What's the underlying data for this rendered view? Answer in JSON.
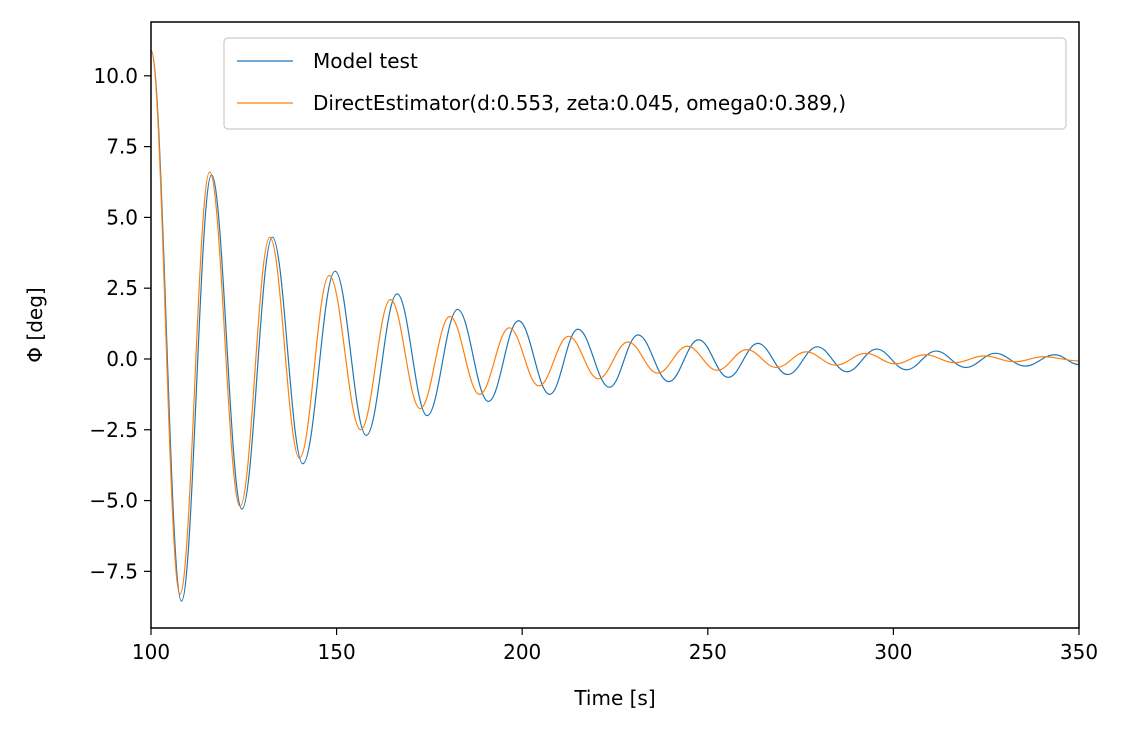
{
  "chart_data": {
    "type": "line",
    "title": "",
    "xlabel": "Time [s]",
    "ylabel": "Φ [deg]",
    "xlim": [
      100,
      350
    ],
    "ylim": [
      -9.5,
      11.9
    ],
    "xticks": [
      100,
      150,
      200,
      250,
      300,
      350
    ],
    "xtick_labels": [
      "100",
      "150",
      "200",
      "250",
      "300",
      "350"
    ],
    "yticks": [
      10.0,
      7.5,
      5.0,
      2.5,
      0.0,
      -2.5,
      -5.0,
      -7.5
    ],
    "ytick_labels": [
      "10.0",
      "7.5",
      "5.0",
      "2.5",
      "0.0",
      "−2.5",
      "−5.0",
      "−7.5"
    ],
    "grid": false,
    "legend_position": "top-right",
    "series": [
      {
        "name": "Model test",
        "color": "#1f77b4",
        "x": [
          100,
          108.2,
          116.3,
          124.5,
          132.7,
          140.9,
          149.6,
          158.0,
          166.3,
          174.4,
          182.6,
          190.9,
          199.0,
          207.4,
          215.0,
          223.5,
          231.2,
          239.5,
          247.5,
          255.5,
          263.5,
          271.5,
          279.5,
          287.5,
          295.5,
          303.5,
          311.5,
          319.5,
          327.5,
          335.5,
          343.5,
          350
        ],
        "y": [
          10.9,
          -8.55,
          6.5,
          -5.3,
          4.3,
          -3.7,
          3.1,
          -2.7,
          2.3,
          -2.0,
          1.75,
          -1.5,
          1.35,
          -1.25,
          1.05,
          -1.0,
          0.85,
          -0.8,
          0.68,
          -0.65,
          0.55,
          -0.55,
          0.43,
          -0.45,
          0.35,
          -0.38,
          0.28,
          -0.3,
          0.2,
          -0.25,
          0.15,
          -0.2
        ]
      },
      {
        "name": "DirectEstimator(d:0.553, zeta:0.045, omega0:0.389,)",
        "color": "#ff7f0e",
        "x": [
          100,
          107.8,
          115.8,
          124.0,
          132.0,
          140.0,
          148.0,
          156.5,
          164.5,
          172.5,
          180.5,
          188.5,
          196.5,
          204.5,
          212.5,
          220.5,
          228.5,
          236.5,
          244.5,
          252.5,
          260.5,
          268.5,
          276.5,
          284.5,
          292.5,
          300.5,
          308.5,
          316.5,
          324.5,
          332.5,
          340.5,
          350
        ],
        "y": [
          10.9,
          -8.3,
          6.6,
          -5.2,
          4.3,
          -3.5,
          2.95,
          -2.5,
          2.1,
          -1.75,
          1.5,
          -1.25,
          1.1,
          -0.95,
          0.8,
          -0.7,
          0.6,
          -0.5,
          0.45,
          -0.4,
          0.33,
          -0.3,
          0.25,
          -0.22,
          0.2,
          -0.17,
          0.15,
          -0.13,
          0.11,
          -0.1,
          0.08,
          -0.07
        ]
      }
    ]
  }
}
